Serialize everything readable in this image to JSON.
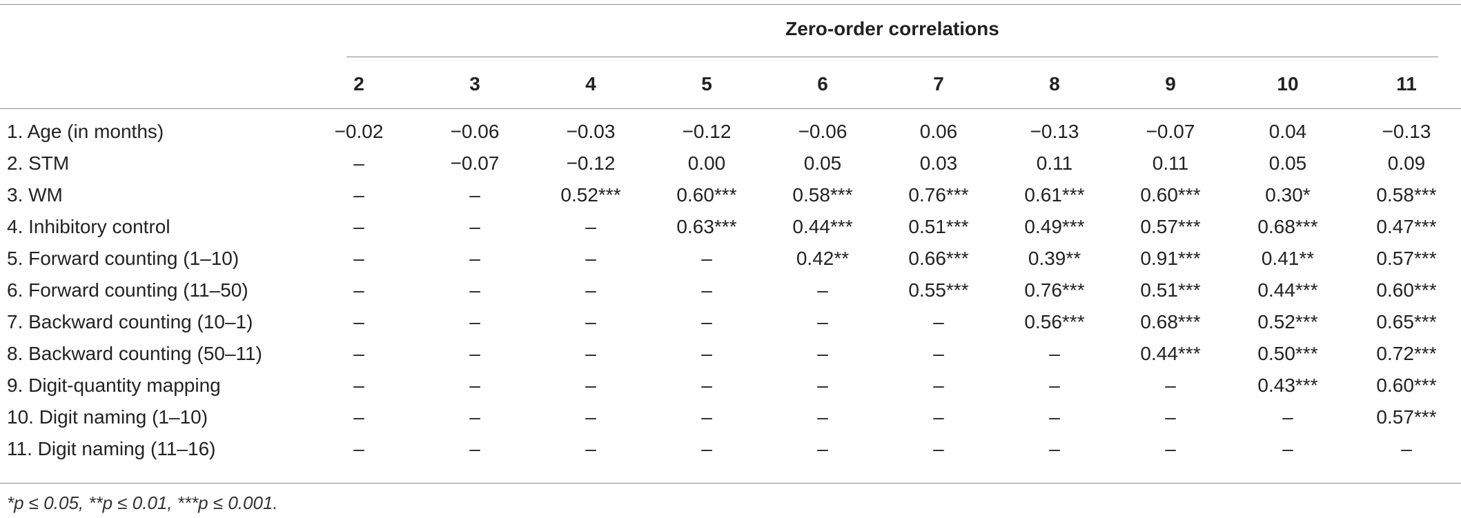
{
  "table": {
    "group_title": "Zero-order correlations",
    "columns": [
      "2",
      "3",
      "4",
      "5",
      "6",
      "7",
      "8",
      "9",
      "10",
      "11"
    ],
    "rows": [
      {
        "label": "1. Age (in months)",
        "cells": [
          "−0.02",
          "−0.06",
          "−0.03",
          "−0.12",
          "−0.06",
          "0.06",
          "−0.13",
          "−0.07",
          "0.04",
          "−0.13"
        ]
      },
      {
        "label": "2. STM",
        "cells": [
          "–",
          "−0.07",
          "−0.12",
          "0.00",
          "0.05",
          "0.03",
          "0.11",
          "0.11",
          "0.05",
          "0.09"
        ]
      },
      {
        "label": "3. WM",
        "cells": [
          "–",
          "–",
          "0.52***",
          "0.60***",
          "0.58***",
          "0.76***",
          "0.61***",
          "0.60***",
          "0.30*",
          "0.58***"
        ]
      },
      {
        "label": "4. Inhibitory control",
        "cells": [
          "–",
          "–",
          "–",
          "0.63***",
          "0.44***",
          "0.51***",
          "0.49***",
          "0.57***",
          "0.68***",
          "0.47***"
        ]
      },
      {
        "label": "5. Forward counting (1–10)",
        "cells": [
          "–",
          "–",
          "–",
          "–",
          "0.42**",
          "0.66***",
          "0.39**",
          "0.91***",
          "0.41**",
          "0.57***"
        ]
      },
      {
        "label": "6. Forward counting (11–50)",
        "cells": [
          "–",
          "–",
          "–",
          "–",
          "–",
          "0.55***",
          "0.76***",
          "0.51***",
          "0.44***",
          "0.60***"
        ]
      },
      {
        "label": "7. Backward counting (10–1)",
        "cells": [
          "–",
          "–",
          "–",
          "–",
          "–",
          "–",
          "0.56***",
          "0.68***",
          "0.52***",
          "0.65***"
        ]
      },
      {
        "label": "8. Backward counting (50–11)",
        "cells": [
          "–",
          "–",
          "–",
          "–",
          "–",
          "–",
          "–",
          "0.44***",
          "0.50***",
          "0.72***"
        ]
      },
      {
        "label": "9. Digit-quantity mapping",
        "cells": [
          "–",
          "–",
          "–",
          "–",
          "–",
          "–",
          "–",
          "–",
          "0.43***",
          "0.60***"
        ]
      },
      {
        "label": "10. Digit naming (1–10)",
        "cells": [
          "–",
          "–",
          "–",
          "–",
          "–",
          "–",
          "–",
          "–",
          "–",
          "0.57***"
        ]
      },
      {
        "label": "11. Digit naming (11–16)",
        "cells": [
          "–",
          "–",
          "–",
          "–",
          "–",
          "–",
          "–",
          "–",
          "–",
          "–"
        ]
      }
    ],
    "footnote": "*p ≤ 0.05, **p ≤ 0.01, ***p ≤ 0.001."
  }
}
